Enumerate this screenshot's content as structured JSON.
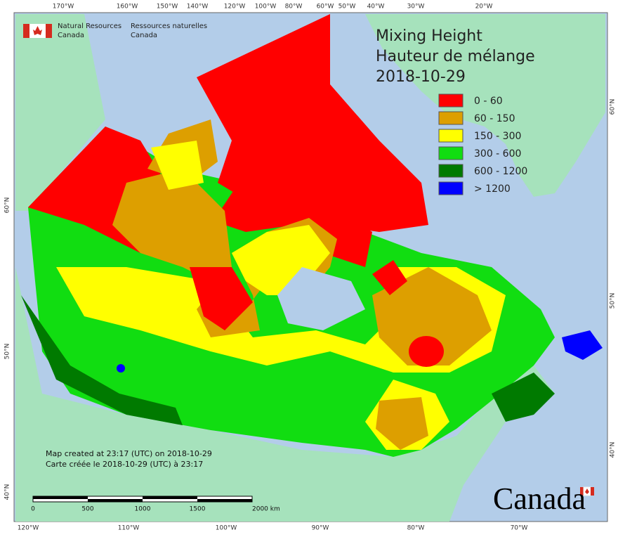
{
  "header": {
    "department_en": "Natural Resources",
    "country_en": "Canada",
    "department_fr": "Ressources naturelles",
    "country_fr": "Canada"
  },
  "title": {
    "line1": "Mixing Height",
    "line2": "Hauteur de mélange",
    "date": "2018-10-29"
  },
  "legend": [
    {
      "label": "0 - 60",
      "color": "#ff0000"
    },
    {
      "label": "60 - 150",
      "color": "#dd9f00"
    },
    {
      "label": "150 - 300",
      "color": "#ffff00"
    },
    {
      "label": "300 - 600",
      "color": "#11dd11"
    },
    {
      "label": "600 - 1200",
      "color": "#007a00"
    },
    {
      "label": "> 1200",
      "color": "#0000ff"
    }
  ],
  "graticule": {
    "top": [
      "170°W",
      "160°W",
      "150°W",
      "140°W",
      "120°W",
      "100°W",
      "80°W",
      "60°W",
      "50°W",
      "40°W",
      "30°W",
      "20°W"
    ],
    "bottom": [
      "120°W",
      "110°W",
      "100°W",
      "90°W",
      "80°W",
      "70°W"
    ],
    "left": [
      "60°N",
      "50°N",
      "40°N"
    ],
    "right": [
      "60°N",
      "50°N",
      "40°N"
    ]
  },
  "notes": {
    "created_en": "Map created at 23:17 (UTC) on 2018-10-29",
    "created_fr": "Carte créée le 2018-10-29 (UTC) à 23:17"
  },
  "scale": [
    "0",
    "500",
    "1000",
    "1500",
    "2000 km"
  ],
  "wordmark": "Canada"
}
